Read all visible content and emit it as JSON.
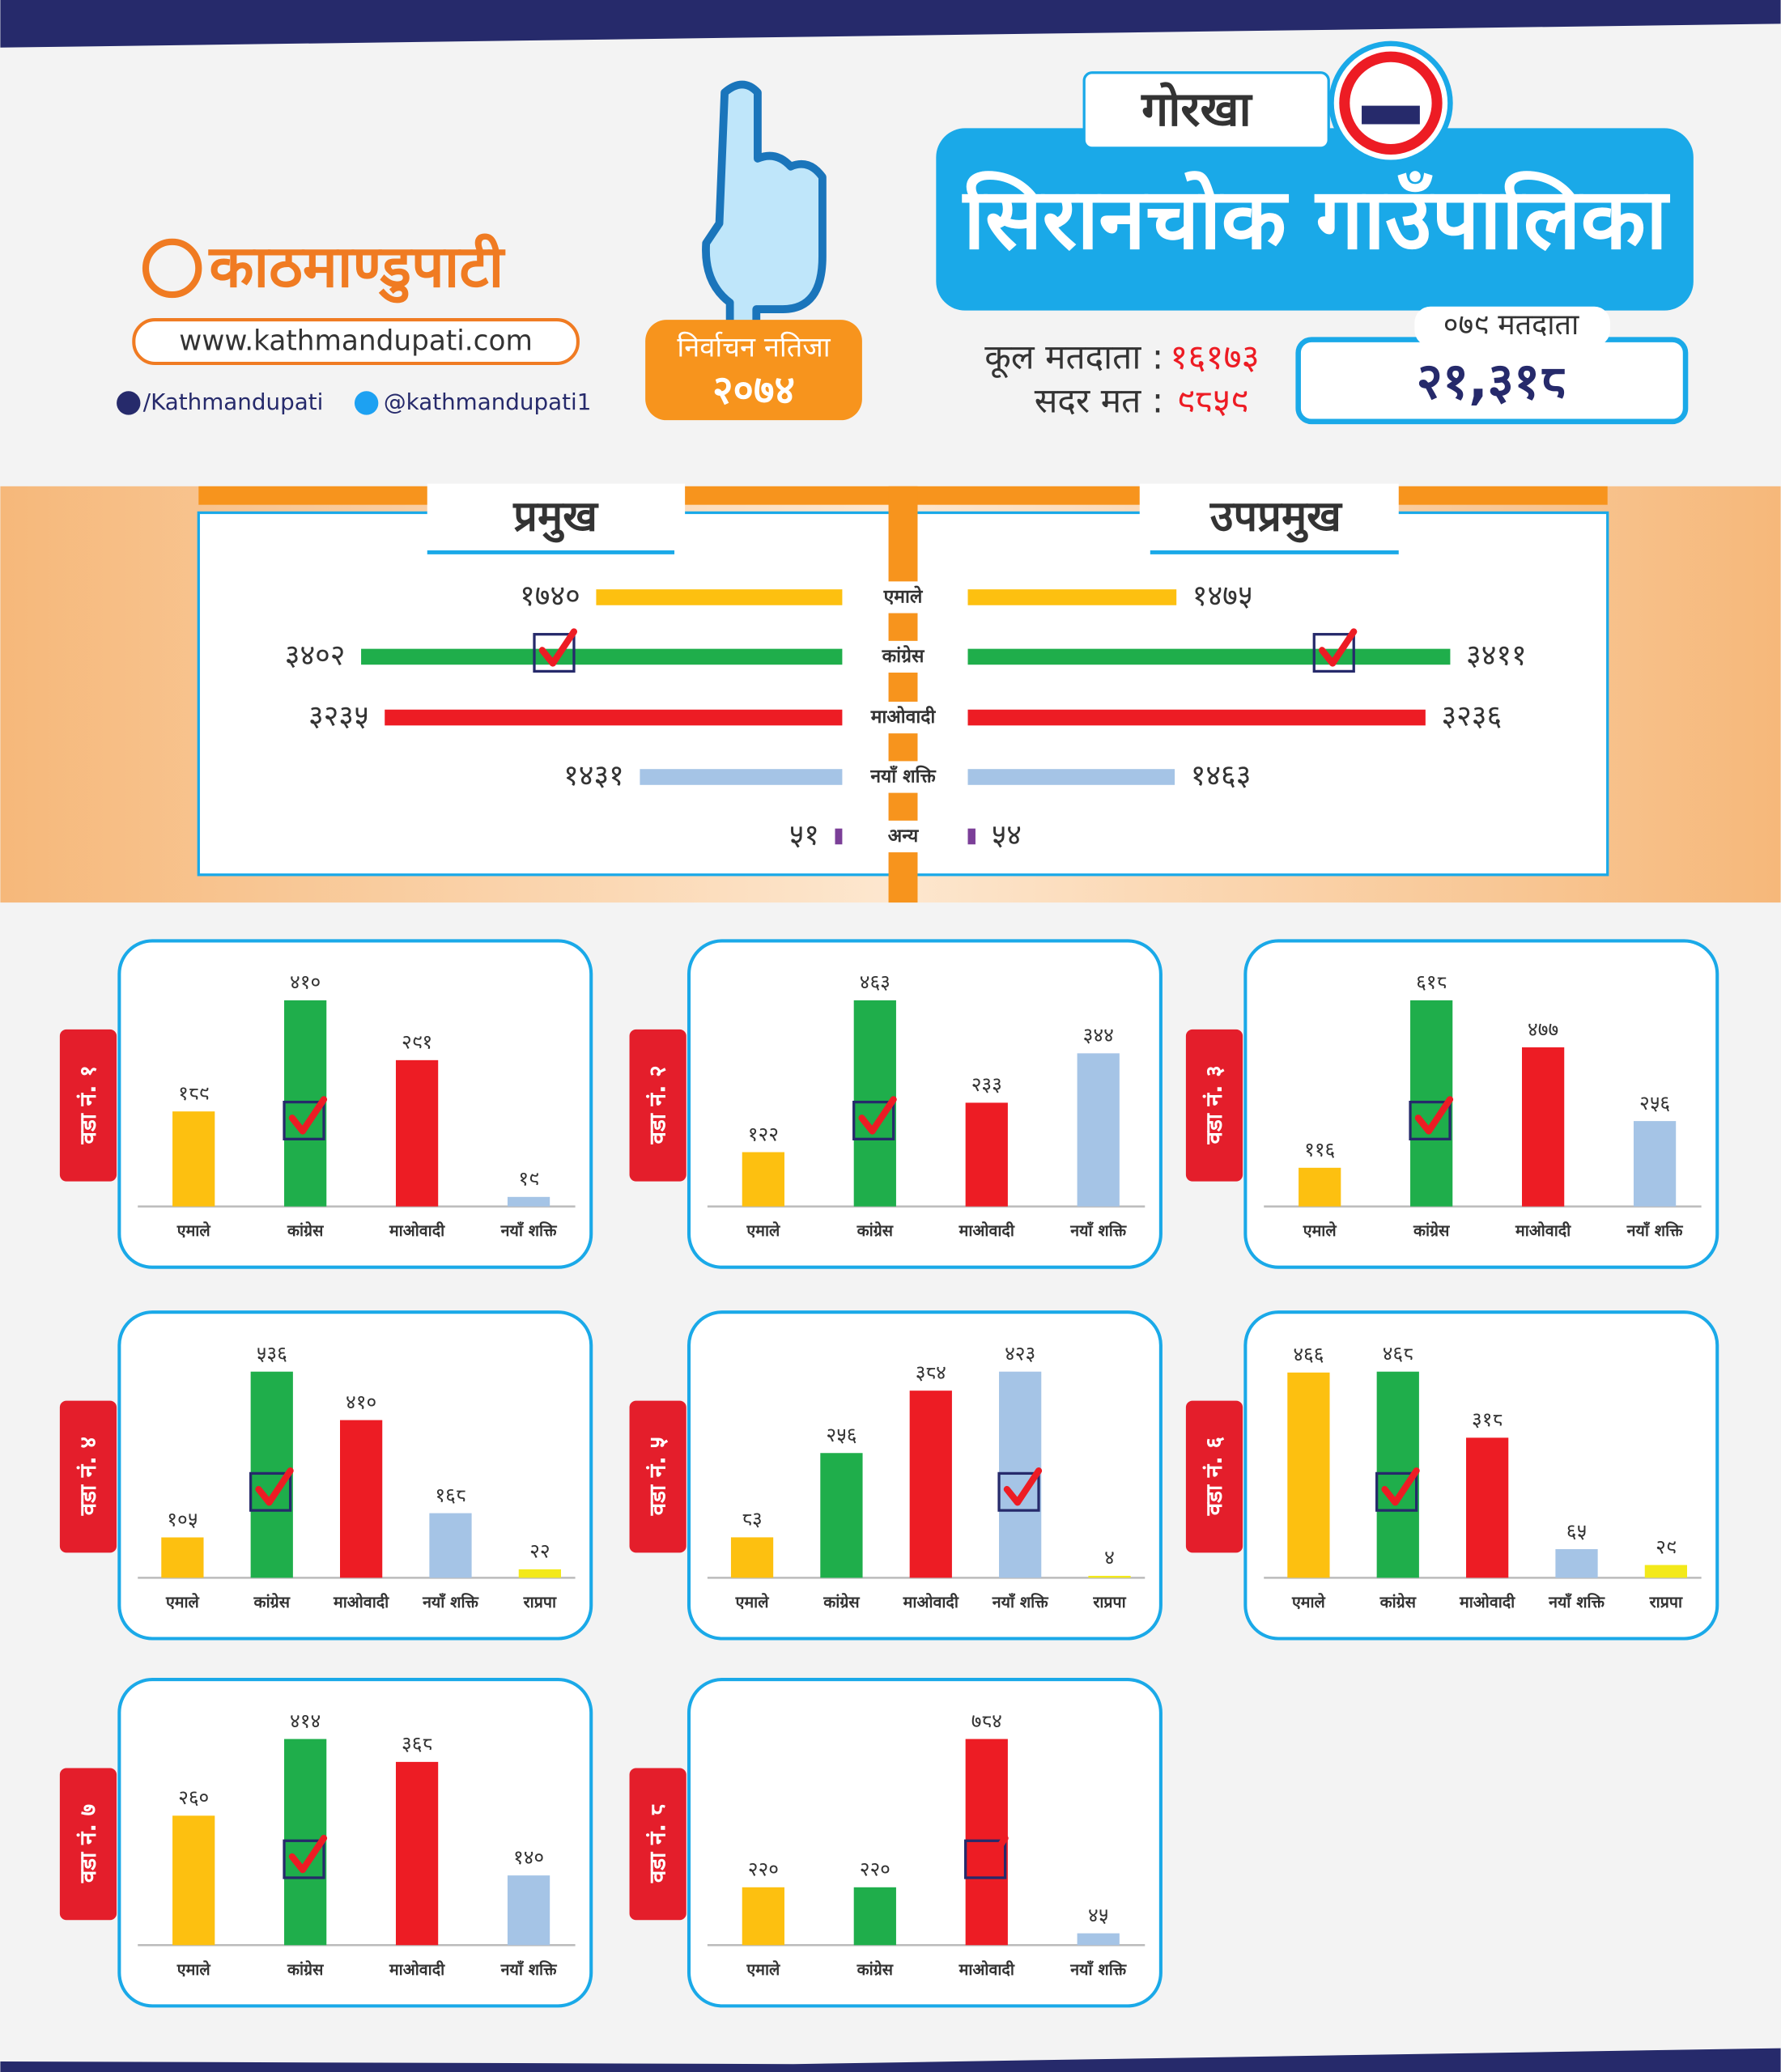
{
  "header": {
    "logo": "काठमाण्डुपाटी",
    "website": "www.kathmandupati.com",
    "facebook": "/Kathmandupati",
    "twitter": "@kathmandupati1",
    "badge_title": "निर्वाचन नतिजा",
    "badge_year": "२०७४",
    "district": "गोरखा",
    "municipality": "सिरानचोक गाउँपालिका",
    "total_voters_label": "कूल मतदाता :",
    "total_voters": "१६१७३",
    "valid_votes_label": "सदर मत :",
    "valid_votes": "९८५९",
    "voters_079_label": "०७९ मतदाता",
    "voters_079": "२१,३१८"
  },
  "chart_data": [
    {
      "type": "butterfly",
      "categories": [
        "एमाले",
        "कांग्रेस",
        "माओवादी",
        "नयाँ शक्ति",
        "अन्य"
      ],
      "colors": [
        "#fdc010",
        "#1fae4b",
        "#ed1c24",
        "#a5c4e6",
        "#7b3f98"
      ],
      "series": [
        {
          "name": "प्रमुख",
          "values": [
            1740,
            3402,
            3235,
            1431,
            51
          ],
          "value_labels": [
            "१७४०",
            "३४०२",
            "३२३५",
            "१४३१",
            "५१"
          ]
        },
        {
          "name": "उपप्रमुख",
          "values": [
            1475,
            3411,
            3236,
            1463,
            54
          ],
          "value_labels": [
            "१४७५",
            "३४११",
            "३२३६",
            "१४६३",
            "५४"
          ]
        }
      ],
      "winner_index": 1
    },
    {
      "type": "bar",
      "title": "वडा नं. १",
      "categories": [
        "एमाले",
        "कांग्रेस",
        "माओवादी",
        "नयाँ शक्ति"
      ],
      "colors": [
        "#fdc010",
        "#1fae4b",
        "#ed1c24",
        "#a5c4e6"
      ],
      "values": [
        189,
        410,
        291,
        19
      ],
      "value_labels": [
        "१८९",
        "४१०",
        "२९१",
        "१९"
      ],
      "winner_index": 1
    },
    {
      "type": "bar",
      "title": "वडा नं. २",
      "categories": [
        "एमाले",
        "कांग्रेस",
        "माओवादी",
        "नयाँ शक्ति"
      ],
      "colors": [
        "#fdc010",
        "#1fae4b",
        "#ed1c24",
        "#a5c4e6"
      ],
      "values": [
        122,
        463,
        233,
        344
      ],
      "value_labels": [
        "१२२",
        "४६३",
        "२३३",
        "३४४"
      ],
      "winner_index": 1
    },
    {
      "type": "bar",
      "title": "वडा नं. ३",
      "categories": [
        "एमाले",
        "कांग्रेस",
        "माओवादी",
        "नयाँ शक्ति"
      ],
      "colors": [
        "#fdc010",
        "#1fae4b",
        "#ed1c24",
        "#a5c4e6"
      ],
      "values": [
        116,
        618,
        477,
        256
      ],
      "value_labels": [
        "११६",
        "६१८",
        "४७७",
        "२५६"
      ],
      "winner_index": 1
    },
    {
      "type": "bar",
      "title": "वडा नं. ४",
      "categories": [
        "एमाले",
        "कांग्रेस",
        "माओवादी",
        "नयाँ शक्ति",
        "राप्रपा"
      ],
      "colors": [
        "#fdc010",
        "#1fae4b",
        "#ed1c24",
        "#a5c4e6",
        "#f3e91a"
      ],
      "values": [
        105,
        536,
        410,
        168,
        22
      ],
      "value_labels": [
        "१०५",
        "५३६",
        "४१०",
        "१६८",
        "२२"
      ],
      "winner_index": 1
    },
    {
      "type": "bar",
      "title": "वडा नं. ५",
      "categories": [
        "एमाले",
        "कांग्रेस",
        "माओवादी",
        "नयाँ शक्ति",
        "राप्रपा"
      ],
      "colors": [
        "#fdc010",
        "#1fae4b",
        "#ed1c24",
        "#a5c4e6",
        "#f3e91a"
      ],
      "values": [
        83,
        256,
        384,
        423,
        4
      ],
      "value_labels": [
        "८३",
        "२५६",
        "३८४",
        "४२३",
        "४"
      ],
      "winner_index": 3
    },
    {
      "type": "bar",
      "title": "वडा नं. ६",
      "categories": [
        "एमाले",
        "कांग्रेस",
        "माओवादी",
        "नयाँ शक्ति",
        "राप्रपा"
      ],
      "colors": [
        "#fdc010",
        "#1fae4b",
        "#ed1c24",
        "#a5c4e6",
        "#f3e91a"
      ],
      "values": [
        466,
        468,
        318,
        65,
        29
      ],
      "value_labels": [
        "४६६",
        "४६८",
        "३१८",
        "६५",
        "२९"
      ],
      "winner_index": 1
    },
    {
      "type": "bar",
      "title": "वडा नं. ७",
      "categories": [
        "एमाले",
        "कांग्रेस",
        "माओवादी",
        "नयाँ शक्ति"
      ],
      "colors": [
        "#fdc010",
        "#1fae4b",
        "#ed1c24",
        "#a5c4e6"
      ],
      "values": [
        260,
        414,
        368,
        140
      ],
      "value_labels": [
        "२६०",
        "४१४",
        "३६८",
        "१४०"
      ],
      "winner_index": 1
    },
    {
      "type": "bar",
      "title": "वडा नं. ८",
      "categories": [
        "एमाले",
        "कांग्रेस",
        "माओवादी",
        "नयाँ शक्ति"
      ],
      "colors": [
        "#fdc010",
        "#1fae4b",
        "#ed1c24",
        "#a5c4e6"
      ],
      "values": [
        220,
        220,
        784,
        45
      ],
      "value_labels": [
        "२२०",
        "२२०",
        "७८४",
        "४५"
      ],
      "winner_index": 2
    }
  ]
}
